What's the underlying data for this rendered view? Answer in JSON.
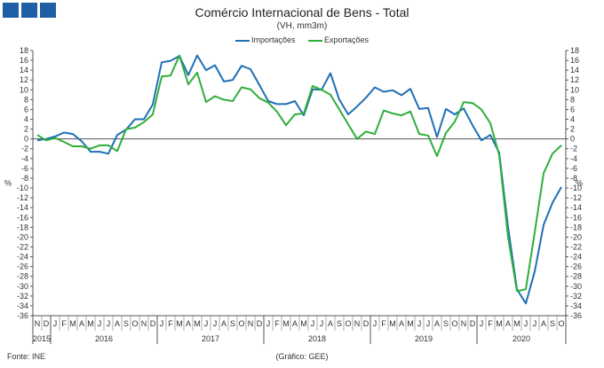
{
  "header": {
    "logo_color": "#1f5fa8"
  },
  "footer": {
    "source": "Fonte: INE",
    "credit": "(Gráfico: GEE)"
  },
  "chart_data": {
    "type": "line",
    "title": "Comércio Internacional de Bens - Total",
    "subtitle": "(VH, mm3m)",
    "ylabel": "%",
    "ylabel_right": "%",
    "ylim": [
      -36,
      18
    ],
    "yticks": [
      18,
      16,
      14,
      12,
      10,
      8,
      6,
      4,
      2,
      0,
      -2,
      -4,
      -6,
      -8,
      -10,
      -12,
      -14,
      -16,
      -18,
      -20,
      -22,
      -24,
      -26,
      -28,
      -30,
      -32,
      -34,
      -36
    ],
    "grid": false,
    "legend_position": "top-center",
    "x_months": [
      "N",
      "D",
      "J",
      "F",
      "M",
      "A",
      "M",
      "J",
      "J",
      "A",
      "S",
      "O",
      "N",
      "D",
      "J",
      "F",
      "M",
      "A",
      "M",
      "J",
      "J",
      "A",
      "S",
      "O",
      "N",
      "D",
      "J",
      "F",
      "M",
      "A",
      "M",
      "J",
      "J",
      "A",
      "S",
      "O",
      "N",
      "D",
      "J",
      "F",
      "M",
      "A",
      "M",
      "J",
      "J",
      "A",
      "S",
      "O",
      "N",
      "D",
      "J",
      "F",
      "M",
      "A",
      "M",
      "J",
      "J",
      "A",
      "S",
      "O"
    ],
    "x_years": [
      {
        "label": "2015",
        "start": 0,
        "end": 1
      },
      {
        "label": "2016",
        "start": 2,
        "end": 13
      },
      {
        "label": "2017",
        "start": 14,
        "end": 25
      },
      {
        "label": "2018",
        "start": 26,
        "end": 37
      },
      {
        "label": "2019",
        "start": 38,
        "end": 49
      },
      {
        "label": "2020",
        "start": 50,
        "end": 59
      }
    ],
    "series": [
      {
        "name": "Importações",
        "color": "#1f6fb5",
        "values": [
          -0.3,
          0,
          0.5,
          1.3,
          1,
          -0.5,
          -2.6,
          -2.6,
          -3,
          0.8,
          1.9,
          4,
          4,
          7,
          15.6,
          15.9,
          16.9,
          13,
          17,
          14,
          15,
          11.7,
          12,
          14.9,
          14.2,
          11,
          7.7,
          7.1,
          7.1,
          7.7,
          4.8,
          10.1,
          10,
          13.4,
          8,
          5,
          6.6,
          8.4,
          10.5,
          9.6,
          9.9,
          8.9,
          10.2,
          6.1,
          6.3,
          0.4,
          6.1,
          5,
          6.2,
          2.8,
          -0.3,
          0.8,
          -2.8,
          -18,
          -30.6,
          -33.5,
          -27,
          -17.5,
          -13,
          -9.8
        ]
      },
      {
        "name": "Exportações",
        "color": "#2fae3c",
        "values": [
          0.8,
          -0.3,
          0.2,
          -0.6,
          -1.5,
          -1.5,
          -2,
          -1.3,
          -1.3,
          -2.5,
          2,
          2.3,
          3.4,
          5,
          12.7,
          12.9,
          17,
          11.1,
          13.5,
          7.5,
          8.7,
          8,
          7.7,
          10.5,
          10.1,
          8.3,
          7.4,
          5.5,
          2.8,
          5,
          5.2,
          10.8,
          10,
          9,
          6,
          3,
          0,
          1.5,
          1,
          5.8,
          5.2,
          4.8,
          5.6,
          1,
          0.7,
          -3.5,
          1.2,
          3.5,
          7.5,
          7.3,
          6,
          3.2,
          -3.3,
          -20,
          -31,
          -30.6,
          -19,
          -7,
          -3,
          -1.3
        ]
      }
    ]
  }
}
